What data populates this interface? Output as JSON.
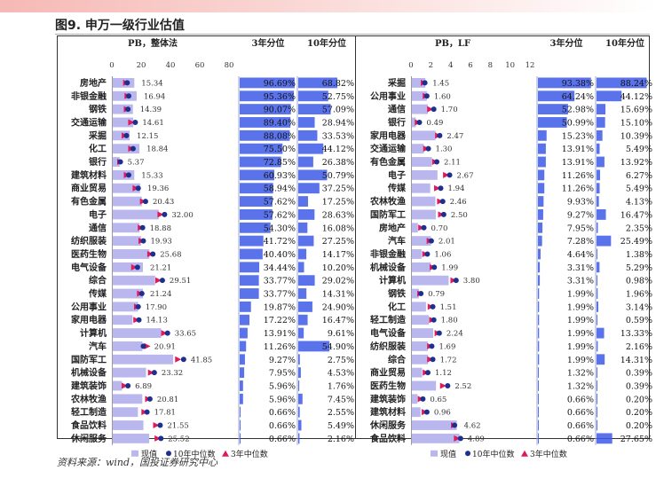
{
  "figure": {
    "title": "图9. 申万一级行业估值",
    "source": "资料来源：wind，国投证券研究中心"
  },
  "colors": {
    "current": "#b9b7ee",
    "median10": "#1d2f8f",
    "median3": "#e0195a",
    "pct_bar": "#3d59e6"
  },
  "chart_data": [
    {
      "type": "scatter",
      "panel": "left",
      "title": "PB，整体法",
      "headers": {
        "pct3": "3年分位",
        "pct10": "10年分位"
      },
      "xlim": [
        0,
        80
      ],
      "xticks": [
        0,
        20,
        40,
        60,
        80
      ],
      "legend": [
        "现值",
        "10年中位数",
        "3年中位数"
      ],
      "rows": [
        {
          "name": "房地产",
          "value": 15.34,
          "label": "15.34",
          "m10": 10.5,
          "m3": 9.5,
          "pct3": "96.69%",
          "pct10": "68.82%"
        },
        {
          "name": "非银金融",
          "value": 16.94,
          "label": "16.94",
          "m10": 11.5,
          "m3": 10.5,
          "pct3": "95.36%",
          "pct10": "52.75%"
        },
        {
          "name": "钢铁",
          "value": 14.39,
          "label": "14.39",
          "m10": 11.0,
          "m3": 10.0,
          "pct3": "90.07%",
          "pct10": "57.09%"
        },
        {
          "name": "交通运输",
          "value": 14.61,
          "label": "14.61",
          "m10": 16.0,
          "m3": 13.0,
          "pct3": "89.40%",
          "pct10": "28.94%"
        },
        {
          "name": "采掘",
          "value": 12.15,
          "label": "12.15",
          "m10": 10.0,
          "m3": 8.5,
          "pct3": "88.08%",
          "pct10": "33.53%"
        },
        {
          "name": "化工",
          "value": 18.84,
          "label": "18.84",
          "m10": 14.5,
          "m3": 13.0,
          "pct3": "75.50%",
          "pct10": "44.12%"
        },
        {
          "name": "银行",
          "value": 5.37,
          "label": "5.37",
          "m10": 5.8,
          "m3": 5.5,
          "pct3": "72.85%",
          "pct10": "26.38%"
        },
        {
          "name": "建筑材料",
          "value": 15.33,
          "label": "15.33",
          "m10": 11.5,
          "m3": 10.0,
          "pct3": "60.93%",
          "pct10": "50.79%"
        },
        {
          "name": "商业贸易",
          "value": 19.36,
          "label": "19.36",
          "m10": 18.0,
          "m3": 16.0,
          "pct3": "58.94%",
          "pct10": "37.25%"
        },
        {
          "name": "有色金属",
          "value": 20.43,
          "label": "20.43",
          "m10": 23.0,
          "m3": 21.0,
          "pct3": "57.62%",
          "pct10": "17.25%"
        },
        {
          "name": "电子",
          "value": 32.0,
          "label": "32.00",
          "m10": 36.0,
          "m3": 33.0,
          "pct3": "57.62%",
          "pct10": "28.63%"
        },
        {
          "name": "通信",
          "value": 18.88,
          "label": "18.88",
          "m10": 21.0,
          "m3": 19.5,
          "pct3": "54.30%",
          "pct10": "16.08%"
        },
        {
          "name": "纺织服装",
          "value": 19.93,
          "label": "19.93",
          "m10": 21.5,
          "m3": 20.0,
          "pct3": "41.72%",
          "pct10": "27.25%"
        },
        {
          "name": "医药生物",
          "value": 25.68,
          "label": "25.68",
          "m10": 28.0,
          "m3": 26.0,
          "pct3": "40.40%",
          "pct10": "14.17%"
        },
        {
          "name": "电气设备",
          "value": 21.21,
          "label": "21.21",
          "m10": 17.5,
          "m3": 15.0,
          "pct3": "34.44%",
          "pct10": "10.20%"
        },
        {
          "name": "综合",
          "value": 29.51,
          "label": "29.51",
          "m10": 34.5,
          "m3": 31.5,
          "pct3": "33.77%",
          "pct10": "29.02%"
        },
        {
          "name": "传媒",
          "value": 21.24,
          "label": "21.24",
          "m10": 20.5,
          "m3": 19.0,
          "pct3": "33.77%",
          "pct10": "14.31%"
        },
        {
          "name": "公用事业",
          "value": 17.9,
          "label": "17.90",
          "m10": 18.0,
          "m3": 17.0,
          "pct3": "19.87%",
          "pct10": "24.90%"
        },
        {
          "name": "家用电器",
          "value": 14.13,
          "label": "14.13",
          "m10": 18.5,
          "m3": 16.5,
          "pct3": "17.22%",
          "pct10": "16.47%"
        },
        {
          "name": "计算机",
          "value": 33.65,
          "label": "33.65",
          "m10": 38.0,
          "m3": 35.5,
          "pct3": "13.91%",
          "pct10": "9.61%"
        },
        {
          "name": "汽车",
          "value": 20.91,
          "label": "20.91",
          "m10": 21.5,
          "m3": 24.0,
          "pct3": "11.26%",
          "pct10": "54.90%"
        },
        {
          "name": "国防军工",
          "value": 41.85,
          "label": "41.85",
          "m10": 49.0,
          "m3": 45.0,
          "pct3": "9.27%",
          "pct10": "2.75%"
        },
        {
          "name": "机械设备",
          "value": 23.32,
          "label": "23.32",
          "m10": 29.0,
          "m3": 26.5,
          "pct3": "7.95%",
          "pct10": "4.53%"
        },
        {
          "name": "建筑装饰",
          "value": 6.89,
          "label": "6.89",
          "m10": 11.0,
          "m3": 8.5,
          "pct3": "5.96%",
          "pct10": "1.76%"
        },
        {
          "name": "农林牧渔",
          "value": 20.81,
          "label": "20.81",
          "m10": 26.0,
          "m3": 24.5,
          "pct3": "5.96%",
          "pct10": "7.45%"
        },
        {
          "name": "轻工制造",
          "value": 17.81,
          "label": "17.81",
          "m10": 24.0,
          "m3": 22.0,
          "pct3": "0.66%",
          "pct10": "2.55%"
        },
        {
          "name": "食品饮料",
          "value": 21.55,
          "label": "21.55",
          "m10": 33.0,
          "m3": 30.0,
          "pct3": "0.66%",
          "pct10": "5.49%"
        },
        {
          "name": "休闲服务",
          "value": 25.52,
          "label": "25.52",
          "m10": 33.5,
          "m3": 31.0,
          "pct3": "0.66%",
          "pct10": "2.16%"
        }
      ]
    },
    {
      "type": "scatter",
      "panel": "right",
      "title": "PB，LF",
      "headers": {
        "pct3": "3年分位",
        "pct10": "10年分位"
      },
      "xlim": [
        0,
        12
      ],
      "xticks": [
        0,
        2,
        4,
        6,
        8,
        10,
        12
      ],
      "legend": [
        "现值",
        "10年中位数",
        "3年中位数"
      ],
      "rows": [
        {
          "name": "采掘",
          "value": 1.45,
          "label": "1.45",
          "m10": 1.4,
          "m3": 1.25,
          "pct3": "93.38%",
          "pct10": "88.24%"
        },
        {
          "name": "公用事业",
          "value": 1.6,
          "label": "1.60",
          "m10": 1.6,
          "m3": 1.45,
          "pct3": "64.24%",
          "pct10": "44.12%"
        },
        {
          "name": "通信",
          "value": 1.7,
          "label": "1.70",
          "m10": 2.3,
          "m3": 1.9,
          "pct3": "52.98%",
          "pct10": "15.69%"
        },
        {
          "name": "银行",
          "value": 0.49,
          "label": "0.49",
          "m10": 0.85,
          "m3": 0.65,
          "pct3": "50.99%",
          "pct10": "15.10%"
        },
        {
          "name": "家用电器",
          "value": 2.47,
          "label": "2.47",
          "m10": 2.9,
          "m3": 2.7,
          "pct3": "15.23%",
          "pct10": "10.39%"
        },
        {
          "name": "交通运输",
          "value": 1.3,
          "label": "1.30",
          "m10": 1.75,
          "m3": 1.5,
          "pct3": "13.91%",
          "pct10": "5.49%"
        },
        {
          "name": "有色金属",
          "value": 2.11,
          "label": "2.11",
          "m10": 2.6,
          "m3": 2.4,
          "pct3": "13.91%",
          "pct10": "13.92%"
        },
        {
          "name": "电子",
          "value": 2.67,
          "label": "2.67",
          "m10": 3.9,
          "m3": 3.5,
          "pct3": "11.26%",
          "pct10": "6.27%"
        },
        {
          "name": "传媒",
          "value": 1.94,
          "label": "1.94",
          "m10": 3.0,
          "m3": 2.6,
          "pct3": "11.26%",
          "pct10": "5.49%"
        },
        {
          "name": "农林牧渔",
          "value": 2.46,
          "label": "2.46",
          "m10": 3.2,
          "m3": 2.9,
          "pct3": "9.93%",
          "pct10": "4.13%"
        },
        {
          "name": "国防军工",
          "value": 2.5,
          "label": "2.50",
          "m10": 3.3,
          "m3": 3.0,
          "pct3": "9.27%",
          "pct10": "16.47%"
        },
        {
          "name": "房地产",
          "value": 0.7,
          "label": "0.70",
          "m10": 1.3,
          "m3": 1.0,
          "pct3": "7.95%",
          "pct10": "2.35%"
        },
        {
          "name": "汽车",
          "value": 2.01,
          "label": "2.01",
          "m10": 2.05,
          "m3": 1.85,
          "pct3": "7.28%",
          "pct10": "25.49%"
        },
        {
          "name": "非银金融",
          "value": 1.06,
          "label": "1.06",
          "m10": 1.65,
          "m3": 1.4,
          "pct3": "4.64%",
          "pct10": "1.38%"
        },
        {
          "name": "机械设备",
          "value": 1.99,
          "label": "1.99",
          "m10": 2.35,
          "m3": 2.15,
          "pct3": "3.31%",
          "pct10": "5.29%"
        },
        {
          "name": "计算机",
          "value": 3.8,
          "label": "3.80",
          "m10": 4.55,
          "m3": 4.25,
          "pct3": "3.31%",
          "pct10": "0.98%"
        },
        {
          "name": "钢铁",
          "value": 0.79,
          "label": "0.79",
          "m10": 1.0,
          "m3": 0.9,
          "pct3": "1.99%",
          "pct10": "1.96%"
        },
        {
          "name": "化工",
          "value": 1.51,
          "label": "1.51",
          "m10": 2.2,
          "m3": 1.95,
          "pct3": "1.99%",
          "pct10": "3.14%"
        },
        {
          "name": "轻工制造",
          "value": 1.8,
          "label": "1.80",
          "m10": 2.3,
          "m3": 2.1,
          "pct3": "1.99%",
          "pct10": "0.59%"
        },
        {
          "name": "电气设备",
          "value": 2.24,
          "label": "2.24",
          "m10": 2.85,
          "m3": 2.65,
          "pct3": "1.99%",
          "pct10": "13.33%"
        },
        {
          "name": "纺织服装",
          "value": 1.69,
          "label": "1.69",
          "m10": 2.1,
          "m3": 1.9,
          "pct3": "1.99%",
          "pct10": "2.16%"
        },
        {
          "name": "综合",
          "value": 1.72,
          "label": "1.72",
          "m10": 2.2,
          "m3": 1.9,
          "pct3": "1.99%",
          "pct10": "14.31%"
        },
        {
          "name": "商业贸易",
          "value": 1.12,
          "label": "1.12",
          "m10": 1.7,
          "m3": 1.45,
          "pct3": "1.32%",
          "pct10": "0.39%"
        },
        {
          "name": "医药生物",
          "value": 2.52,
          "label": "2.52",
          "m10": 3.7,
          "m3": 3.2,
          "pct3": "1.32%",
          "pct10": "0.39%"
        },
        {
          "name": "建筑装饰",
          "value": 0.65,
          "label": "0.65",
          "m10": 1.2,
          "m3": 0.95,
          "pct3": "0.66%",
          "pct10": "0.20%"
        },
        {
          "name": "建筑材料",
          "value": 0.96,
          "label": "0.96",
          "m10": 1.6,
          "m3": 1.35,
          "pct3": "0.66%",
          "pct10": "0.20%"
        },
        {
          "name": "休闲服务",
          "value": 4.62,
          "label": "4.62",
          "m10": 4.4,
          "m3": 4.3,
          "pct3": "0.66%",
          "pct10": "0.20%"
        },
        {
          "name": "食品饮料",
          "value": 4.89,
          "label": "4.89",
          "m10": 5.0,
          "m3": 4.6,
          "pct3": "0.66%",
          "pct10": "27.65%"
        }
      ]
    }
  ]
}
